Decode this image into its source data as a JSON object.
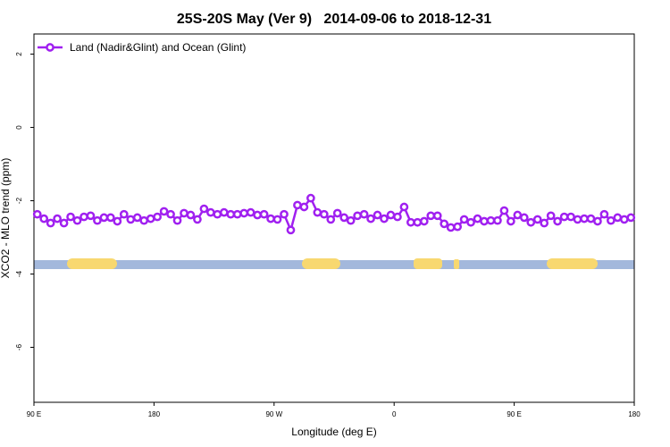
{
  "chart_data": {
    "type": "line",
    "title": "25S-20S May (Ver 9)   2014-09-06 to 2018-12-31",
    "x_label": "Longitude (deg E)",
    "y_label": "XCO2 - MLO trend (ppm)",
    "xlim": [
      90,
      540
    ],
    "ylim": [
      -7.5,
      2.55
    ],
    "xticks": [
      {
        "value": 90,
        "label": "90 E"
      },
      {
        "value": 180,
        "label": "180"
      },
      {
        "value": 270,
        "label": "90 W"
      },
      {
        "value": 360,
        "label": "0"
      },
      {
        "value": 450,
        "label": "90 E"
      },
      {
        "value": 540,
        "label": "180"
      }
    ],
    "yticks": [
      2,
      0,
      -2,
      -4,
      -6
    ],
    "legend": "top-left",
    "x": [
      92.5,
      97.5,
      102.5,
      107.5,
      112.5,
      117.5,
      122.5,
      127.5,
      132.5,
      137.5,
      142.5,
      147.5,
      152.5,
      157.5,
      162.5,
      167.5,
      172.5,
      177.5,
      182.5,
      187.5,
      192.5,
      197.5,
      202.5,
      207.5,
      212.5,
      217.5,
      222.5,
      227.5,
      232.5,
      237.5,
      242.5,
      247.5,
      252.5,
      257.5,
      262.5,
      267.5,
      272.5,
      277.5,
      282.5,
      287.5,
      292.5,
      297.5,
      302.5,
      307.5,
      312.5,
      317.5,
      322.5,
      327.5,
      332.5,
      337.5,
      342.5,
      347.5,
      352.5,
      357.5,
      362.5,
      367.5,
      372.5,
      377.5,
      382.5,
      387.5,
      392.5,
      397.5,
      402.5,
      407.5,
      412.5,
      417.5,
      422.5,
      427.5,
      432.5,
      437.5,
      442.5,
      447.5,
      452.5,
      457.5,
      462.5,
      467.5,
      472.5,
      477.5,
      482.5,
      487.5,
      492.5,
      497.5,
      502.5,
      507.5,
      512.5,
      517.5,
      522.5,
      527.5,
      532.5,
      537.5
    ],
    "series": [
      {
        "name": "Land (Nadir&Glint) and Ocean (Glint)",
        "color": "#a020f0",
        "values": [
          -2.37,
          -2.49,
          -2.61,
          -2.49,
          -2.61,
          -2.44,
          -2.54,
          -2.44,
          -2.41,
          -2.54,
          -2.46,
          -2.46,
          -2.56,
          -2.37,
          -2.51,
          -2.46,
          -2.54,
          -2.49,
          -2.44,
          -2.29,
          -2.37,
          -2.54,
          -2.34,
          -2.39,
          -2.51,
          -2.22,
          -2.32,
          -2.37,
          -2.32,
          -2.37,
          -2.37,
          -2.34,
          -2.32,
          -2.39,
          -2.37,
          -2.49,
          -2.51,
          -2.37,
          -2.8,
          -2.12,
          -2.17,
          -1.93,
          -2.32,
          -2.37,
          -2.51,
          -2.34,
          -2.46,
          -2.54,
          -2.41,
          -2.37,
          -2.49,
          -2.39,
          -2.49,
          -2.39,
          -2.44,
          -2.17,
          -2.59,
          -2.59,
          -2.56,
          -2.41,
          -2.41,
          -2.63,
          -2.73,
          -2.71,
          -2.51,
          -2.59,
          -2.49,
          -2.56,
          -2.54,
          -2.54,
          -2.27,
          -2.56,
          -2.39,
          -2.46,
          -2.59,
          -2.51,
          -2.61,
          -2.41,
          -2.56,
          -2.44,
          -2.44,
          -2.51,
          -2.49,
          -2.49,
          -2.56,
          -2.37,
          -2.54,
          -2.46,
          -2.51,
          -2.46
        ]
      }
    ]
  }
}
